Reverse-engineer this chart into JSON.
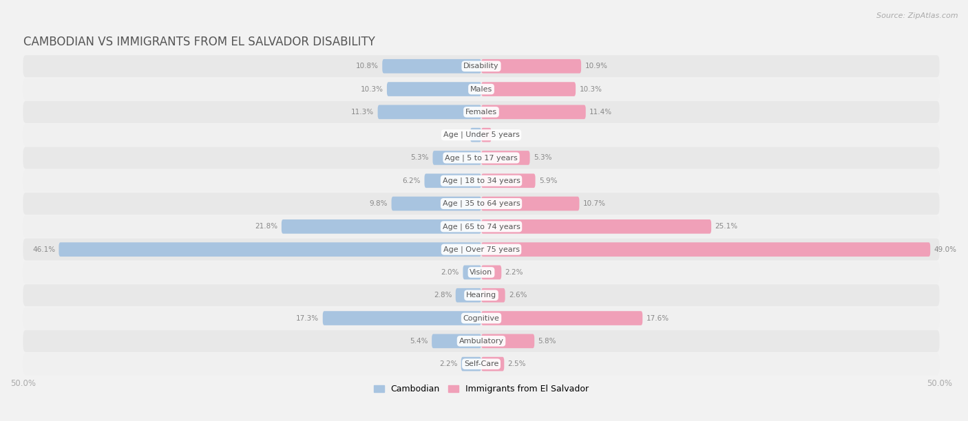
{
  "title": "Cambodian vs Immigrants from El Salvador Disability",
  "source": "Source: ZipAtlas.com",
  "categories": [
    "Disability",
    "Males",
    "Females",
    "Age | Under 5 years",
    "Age | 5 to 17 years",
    "Age | 18 to 34 years",
    "Age | 35 to 64 years",
    "Age | 65 to 74 years",
    "Age | Over 75 years",
    "Vision",
    "Hearing",
    "Cognitive",
    "Ambulatory",
    "Self-Care"
  ],
  "cambodian": [
    10.8,
    10.3,
    11.3,
    1.2,
    5.3,
    6.2,
    9.8,
    21.8,
    46.1,
    2.0,
    2.8,
    17.3,
    5.4,
    2.2
  ],
  "el_salvador": [
    10.9,
    10.3,
    11.4,
    1.1,
    5.3,
    5.9,
    10.7,
    25.1,
    49.0,
    2.2,
    2.6,
    17.6,
    5.8,
    2.5
  ],
  "cambodian_color": "#a8c4e0",
  "el_salvador_color": "#f0a0b8",
  "background_color": "#f2f2f2",
  "row_bg_even": "#e8e8e8",
  "row_bg_odd": "#f0f0f0",
  "max_val": 50.0,
  "legend_cambodian": "Cambodian",
  "legend_el_salvador": "Immigrants from El Salvador",
  "title_fontsize": 12,
  "label_fontsize": 8,
  "value_fontsize": 7.5,
  "bar_height": 0.62
}
